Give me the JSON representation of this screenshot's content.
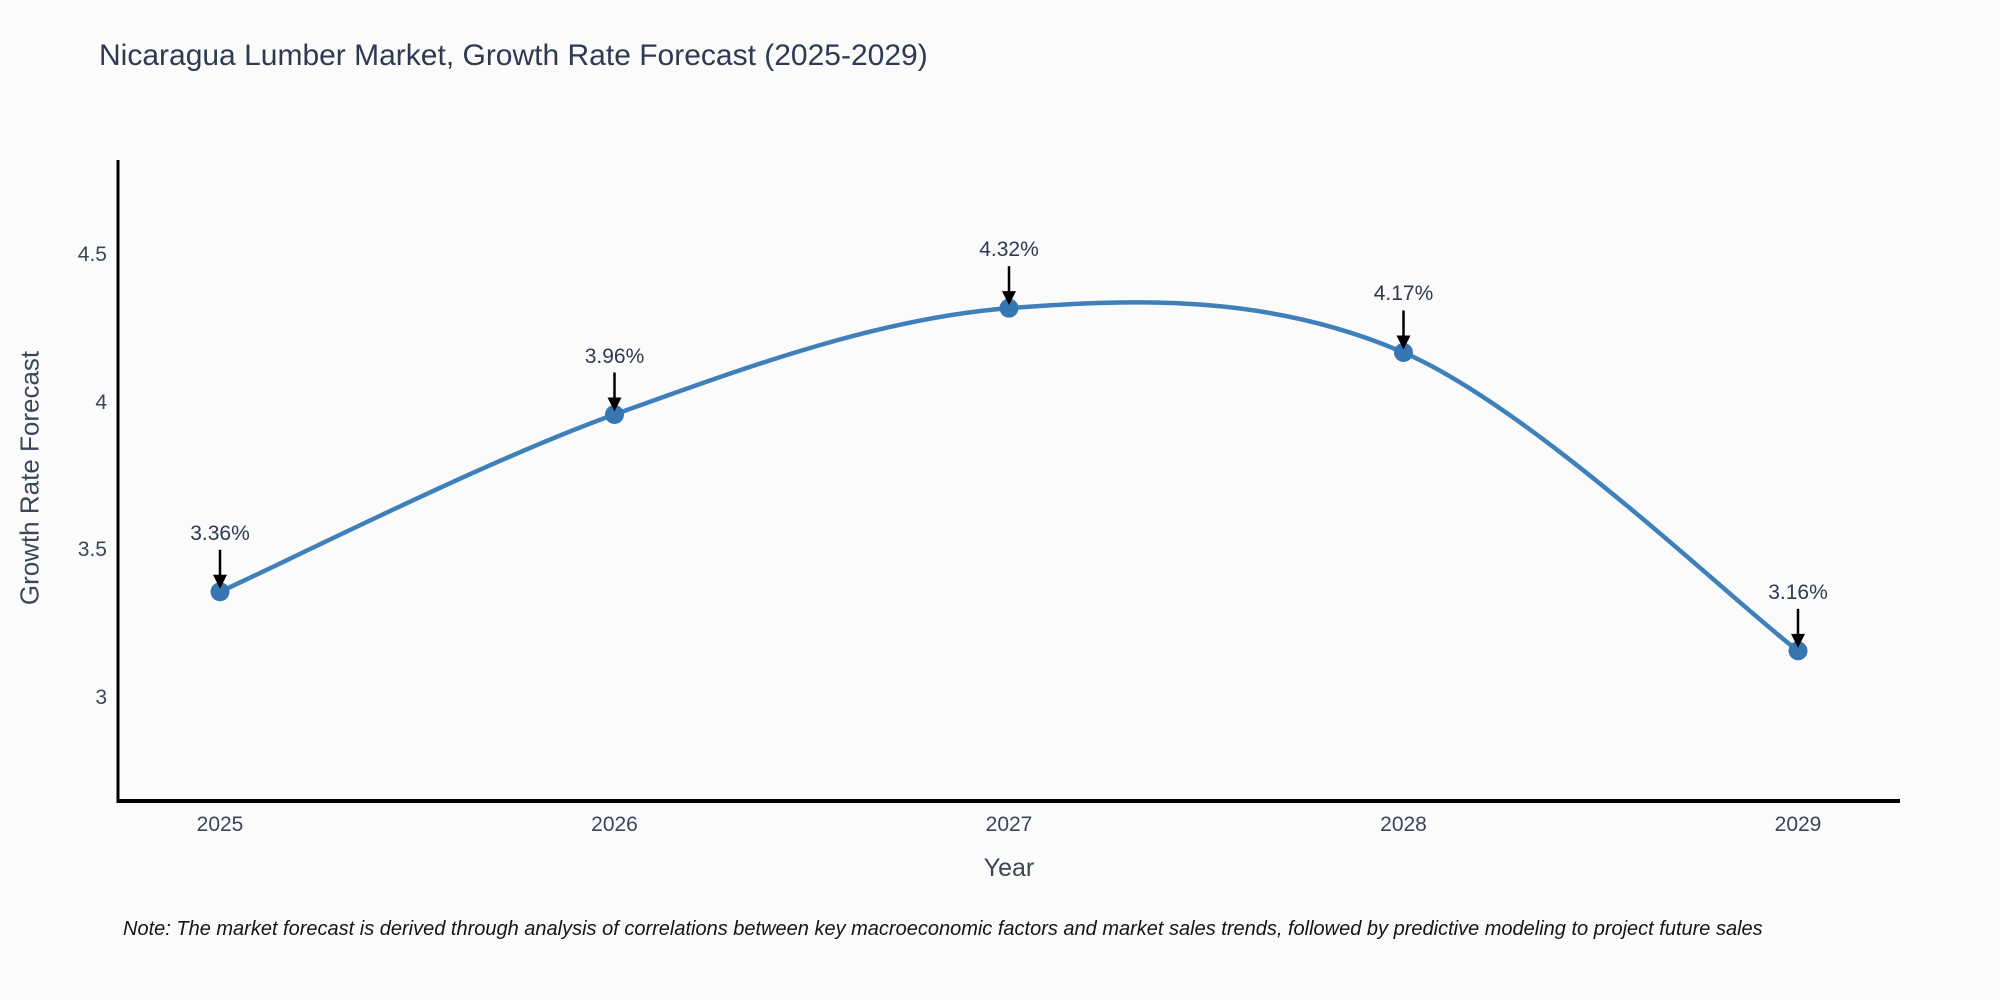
{
  "colors": {
    "background": "#fbfbfb",
    "line": "#3f80bb",
    "marker": "#3676b3",
    "axis_line": "#000000",
    "title_text": "#2e3a52",
    "tick_text": "#3b4658",
    "annotation_text": "#2e3a52",
    "annotation_arrow": "#000000",
    "note_text": "#141414"
  },
  "chart_data": {
    "type": "line",
    "title": "Nicaragua Lumber Market, Growth Rate Forecast (2025-2029)",
    "xlabel": "Year",
    "ylabel": "Growth Rate Forecast",
    "x": [
      2025,
      2026,
      2027,
      2028,
      2029
    ],
    "values": [
      3.36,
      3.96,
      4.32,
      4.17,
      3.16
    ],
    "labels": [
      "3.36%",
      "3.96%",
      "4.32%",
      "4.17%",
      "3.16%"
    ],
    "xtick_labels": [
      "2025",
      "2026",
      "2027",
      "2028",
      "2029"
    ],
    "ytick_labels": [
      "4.5",
      "4",
      "3.5",
      "3"
    ],
    "ytick_values": [
      4.5,
      4.0,
      3.5,
      3.0
    ],
    "xlim": [
      2024.74,
      2029.26
    ],
    "ylim": [
      2.65,
      4.82
    ],
    "grid": false,
    "legend": "none",
    "smooth": true,
    "markers": true,
    "annotations": "value labels with down arrows above each point"
  },
  "note": "Note: The market forecast is derived through analysis of correlations between key macroeconomic factors and market sales trends, followed by predictive modeling to project future sales"
}
